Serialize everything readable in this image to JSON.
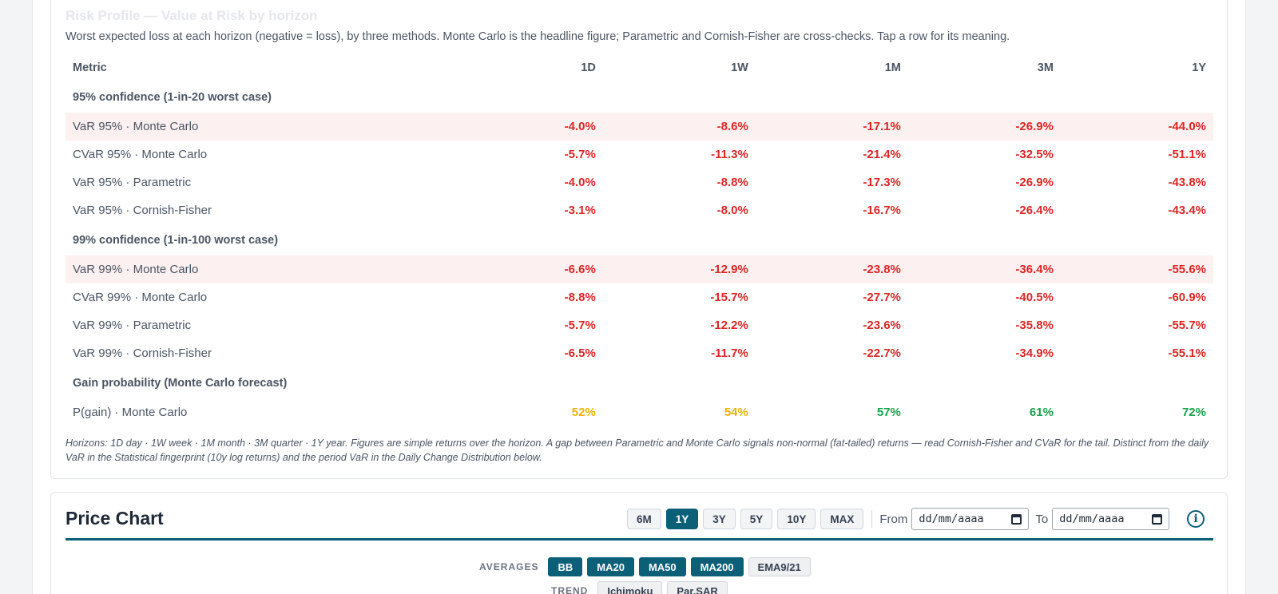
{
  "risk": {
    "title": "Risk Profile — Value at Risk by horizon",
    "subtitle": "Worst expected loss at each horizon (negative = loss), by three methods. Monte Carlo is the headline figure; Parametric and Cornish-Fisher are cross-checks. Tap a row for its meaning.",
    "columns": [
      "Metric",
      "1D",
      "1W",
      "1M",
      "3M",
      "1Y"
    ],
    "groups": [
      {
        "label": "95% confidence (1-in-20 worst case)",
        "rows": [
          {
            "name": "VaR 95% · Monte Carlo",
            "values": [
              "-4.0%",
              "-8.6%",
              "-17.1%",
              "-26.9%",
              "-44.0%"
            ],
            "highlight": true
          },
          {
            "name": "CVaR 95% · Monte Carlo",
            "values": [
              "-5.7%",
              "-11.3%",
              "-21.4%",
              "-32.5%",
              "-51.1%"
            ]
          },
          {
            "name": "VaR 95% · Parametric",
            "values": [
              "-4.0%",
              "-8.8%",
              "-17.3%",
              "-26.9%",
              "-43.8%"
            ]
          },
          {
            "name": "VaR 95% · Cornish-Fisher",
            "values": [
              "-3.1%",
              "-8.0%",
              "-16.7%",
              "-26.4%",
              "-43.4%"
            ]
          }
        ]
      },
      {
        "label": "99% confidence (1-in-100 worst case)",
        "rows": [
          {
            "name": "VaR 99% · Monte Carlo",
            "values": [
              "-6.6%",
              "-12.9%",
              "-23.8%",
              "-36.4%",
              "-55.6%"
            ],
            "highlight": true
          },
          {
            "name": "CVaR 99% · Monte Carlo",
            "values": [
              "-8.8%",
              "-15.7%",
              "-27.7%",
              "-40.5%",
              "-60.9%"
            ]
          },
          {
            "name": "VaR 99% · Parametric",
            "values": [
              "-5.7%",
              "-12.2%",
              "-23.6%",
              "-35.8%",
              "-55.7%"
            ]
          },
          {
            "name": "VaR 99% · Cornish-Fisher",
            "values": [
              "-6.5%",
              "-11.7%",
              "-22.7%",
              "-34.9%",
              "-55.1%"
            ]
          }
        ]
      },
      {
        "label": "Gain probability (Monte Carlo forecast)",
        "rows": [
          {
            "name": "P(gain) · Monte Carlo",
            "values": [
              "52%",
              "54%",
              "57%",
              "61%",
              "72%"
            ],
            "tones": [
              "mid",
              "mid",
              "pos",
              "pos",
              "pos"
            ]
          }
        ]
      }
    ],
    "footnote": "Horizons: 1D day · 1W week · 1M month · 3M quarter · 1Y year. Figures are simple returns over the horizon. A gap between Parametric and Monte Carlo signals non-normal (fat-tailed) returns — read Cornish-Fisher and CVaR for the tail. Distinct from the daily VaR in the Statistical fingerprint (10y log returns) and the period VaR in the Daily Change Distribution below."
  },
  "price_chart": {
    "title": "Price Chart",
    "ranges": [
      "6M",
      "1Y",
      "3Y",
      "5Y",
      "10Y",
      "MAX"
    ],
    "active_range": "1Y",
    "from_label": "From",
    "from_value": "dd/mm/aaaa",
    "to_label": "To",
    "to_value": "dd/mm/aaaa",
    "info_icon": "i",
    "averages_label": "AVERAGES",
    "averages": [
      {
        "label": "BB",
        "on": true
      },
      {
        "label": "MA20",
        "on": true
      },
      {
        "label": "MA50",
        "on": true
      },
      {
        "label": "MA200",
        "on": true
      },
      {
        "label": "EMA9/21",
        "on": false
      }
    ],
    "trend_label": "TREND",
    "trend": [
      {
        "label": "Ichimoku",
        "on": false
      },
      {
        "label": "Par.SAR",
        "on": false
      }
    ]
  },
  "colors": {
    "accent": "#0b5f77",
    "negative": "#dc2626",
    "positive": "#16a34a",
    "neutral": "#eab308",
    "row_highlight": "#fdf0f0"
  }
}
